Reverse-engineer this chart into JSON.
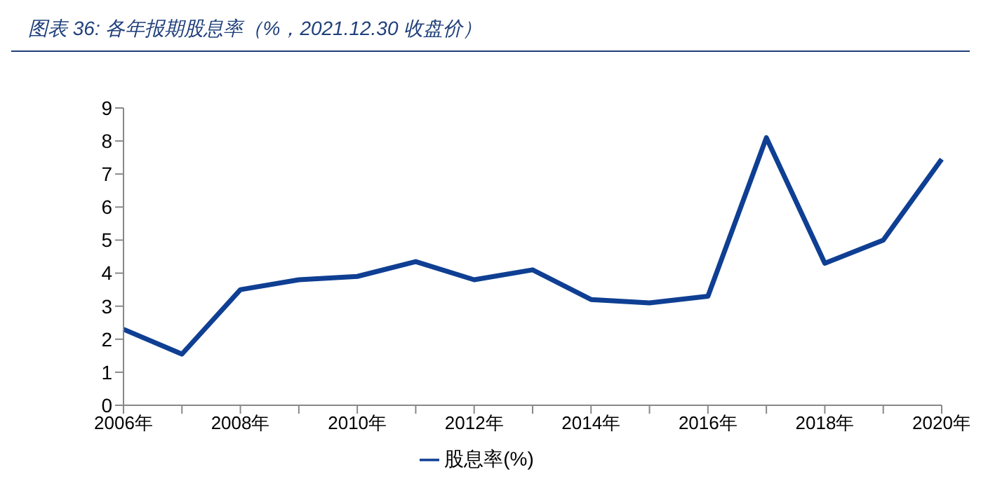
{
  "chart_data": {
    "type": "line",
    "title": "图表 36:  各年报期股息率（%，2021.12.30 收盘价）",
    "categories": [
      "2006年",
      null,
      "2008年",
      null,
      "2010年",
      null,
      "2012年",
      null,
      "2014年",
      null,
      "2016年",
      null,
      "2018年",
      null,
      "2020年"
    ],
    "series": [
      {
        "name": "股息率(%)",
        "color": "#0f3f93",
        "values": [
          2.3,
          1.55,
          3.5,
          3.8,
          3.9,
          4.35,
          3.8,
          4.1,
          3.2,
          3.1,
          3.3,
          8.1,
          4.3,
          5.0,
          7.45
        ]
      }
    ],
    "ylim": [
      0,
      9
    ],
    "yticks": [
      0,
      1,
      2,
      3,
      4,
      5,
      6,
      7,
      8,
      9
    ],
    "grid": false,
    "legend": "bottom",
    "marker": "none",
    "line_style": "solid"
  }
}
